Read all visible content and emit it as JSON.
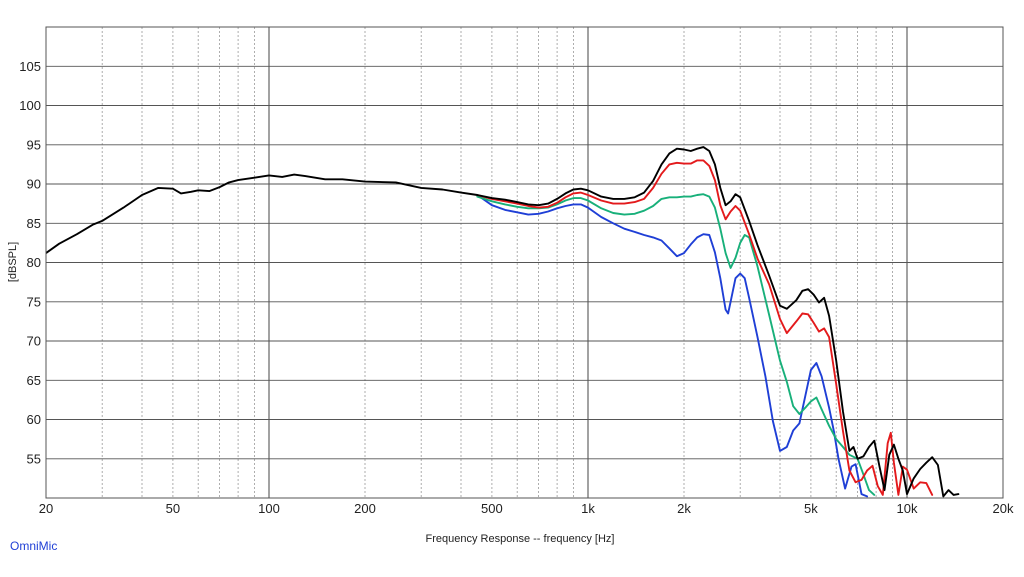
{
  "app": {
    "brand": "OmniMic"
  },
  "chart_data": {
    "type": "line",
    "title": "",
    "xlabel": "Frequency Response -- frequency [Hz]",
    "ylabel": "[dBSPL]",
    "x_scale": "log",
    "xlim": [
      20,
      20000
    ],
    "ylim": [
      50,
      110
    ],
    "grid": true,
    "x_ticks": [
      {
        "value": 20,
        "label": "20"
      },
      {
        "value": 50,
        "label": "50"
      },
      {
        "value": 100,
        "label": "100"
      },
      {
        "value": 200,
        "label": "200"
      },
      {
        "value": 500,
        "label": "500"
      },
      {
        "value": 1000,
        "label": "1k"
      },
      {
        "value": 2000,
        "label": "2k"
      },
      {
        "value": 5000,
        "label": "5k"
      },
      {
        "value": 10000,
        "label": "10k"
      },
      {
        "value": 20000,
        "label": "20k"
      }
    ],
    "y_ticks": [
      55,
      60,
      65,
      70,
      75,
      80,
      85,
      90,
      95,
      100,
      105
    ],
    "series": [
      {
        "color": "#000000",
        "points": [
          [
            20,
            81.2
          ],
          [
            22,
            82.4
          ],
          [
            25,
            83.6
          ],
          [
            28,
            84.8
          ],
          [
            30,
            85.3
          ],
          [
            35,
            87.0
          ],
          [
            40,
            88.6
          ],
          [
            45,
            89.5
          ],
          [
            50,
            89.4
          ],
          [
            53,
            88.8
          ],
          [
            57,
            89.0
          ],
          [
            60,
            89.2
          ],
          [
            65,
            89.1
          ],
          [
            70,
            89.6
          ],
          [
            75,
            90.2
          ],
          [
            80,
            90.5
          ],
          [
            90,
            90.8
          ],
          [
            100,
            91.1
          ],
          [
            110,
            90.9
          ],
          [
            120,
            91.2
          ],
          [
            130,
            91.0
          ],
          [
            150,
            90.6
          ],
          [
            170,
            90.6
          ],
          [
            200,
            90.3
          ],
          [
            250,
            90.2
          ],
          [
            300,
            89.5
          ],
          [
            350,
            89.3
          ],
          [
            400,
            88.9
          ],
          [
            450,
            88.6
          ],
          [
            500,
            88.2
          ],
          [
            550,
            88.0
          ],
          [
            600,
            87.7
          ],
          [
            650,
            87.4
          ],
          [
            700,
            87.3
          ],
          [
            750,
            87.5
          ],
          [
            800,
            88.1
          ],
          [
            850,
            88.8
          ],
          [
            900,
            89.3
          ],
          [
            950,
            89.4
          ],
          [
            1000,
            89.2
          ],
          [
            1100,
            88.4
          ],
          [
            1200,
            88.1
          ],
          [
            1300,
            88.1
          ],
          [
            1400,
            88.3
          ],
          [
            1500,
            88.9
          ],
          [
            1600,
            90.4
          ],
          [
            1700,
            92.5
          ],
          [
            1800,
            93.9
          ],
          [
            1900,
            94.5
          ],
          [
            2000,
            94.4
          ],
          [
            2100,
            94.2
          ],
          [
            2200,
            94.5
          ],
          [
            2300,
            94.7
          ],
          [
            2400,
            94.2
          ],
          [
            2500,
            92.5
          ],
          [
            2600,
            89.5
          ],
          [
            2700,
            87.3
          ],
          [
            2800,
            87.8
          ],
          [
            2900,
            88.7
          ],
          [
            3000,
            88.3
          ],
          [
            3200,
            85.3
          ],
          [
            3400,
            82.2
          ],
          [
            3700,
            78.3
          ],
          [
            4000,
            74.5
          ],
          [
            4200,
            74.1
          ],
          [
            4500,
            75.2
          ],
          [
            4700,
            76.4
          ],
          [
            4900,
            76.6
          ],
          [
            5100,
            75.9
          ],
          [
            5300,
            74.9
          ],
          [
            5500,
            75.5
          ],
          [
            5700,
            73.2
          ],
          [
            6000,
            67.5
          ],
          [
            6300,
            61.0
          ],
          [
            6600,
            56.0
          ],
          [
            6800,
            56.5
          ],
          [
            7000,
            55.0
          ],
          [
            7300,
            55.3
          ],
          [
            7600,
            56.5
          ],
          [
            7900,
            57.3
          ],
          [
            8200,
            54.0
          ],
          [
            8500,
            51.0
          ],
          [
            8800,
            55.5
          ],
          [
            9100,
            56.8
          ],
          [
            9400,
            55.0
          ],
          [
            9700,
            53.5
          ],
          [
            10000,
            50.5
          ],
          [
            10500,
            52.5
          ],
          [
            11000,
            53.7
          ],
          [
            11500,
            54.5
          ],
          [
            12000,
            55.2
          ],
          [
            12500,
            54.2
          ],
          [
            13000,
            50.2
          ],
          [
            13500,
            51.0
          ],
          [
            14000,
            50.4
          ],
          [
            14500,
            50.5
          ]
        ]
      },
      {
        "color": "#e31a1c",
        "points": [
          [
            450,
            88.6
          ],
          [
            500,
            88.1
          ],
          [
            550,
            87.8
          ],
          [
            600,
            87.5
          ],
          [
            650,
            87.2
          ],
          [
            700,
            87.0
          ],
          [
            750,
            87.1
          ],
          [
            800,
            87.6
          ],
          [
            850,
            88.3
          ],
          [
            900,
            88.8
          ],
          [
            950,
            88.9
          ],
          [
            1000,
            88.6
          ],
          [
            1100,
            87.9
          ],
          [
            1200,
            87.5
          ],
          [
            1300,
            87.5
          ],
          [
            1400,
            87.7
          ],
          [
            1500,
            88.1
          ],
          [
            1600,
            89.5
          ],
          [
            1700,
            91.3
          ],
          [
            1800,
            92.5
          ],
          [
            1900,
            92.7
          ],
          [
            2000,
            92.6
          ],
          [
            2100,
            92.6
          ],
          [
            2200,
            93.0
          ],
          [
            2300,
            93.0
          ],
          [
            2400,
            92.3
          ],
          [
            2500,
            90.5
          ],
          [
            2600,
            87.3
          ],
          [
            2700,
            85.5
          ],
          [
            2800,
            86.5
          ],
          [
            2900,
            87.2
          ],
          [
            3000,
            86.6
          ],
          [
            3200,
            83.6
          ],
          [
            3400,
            80.5
          ],
          [
            3700,
            77.2
          ],
          [
            4000,
            72.8
          ],
          [
            4200,
            71.0
          ],
          [
            4500,
            72.5
          ],
          [
            4700,
            73.5
          ],
          [
            4900,
            73.4
          ],
          [
            5100,
            72.3
          ],
          [
            5300,
            71.2
          ],
          [
            5500,
            71.6
          ],
          [
            5700,
            70.5
          ],
          [
            6000,
            64.5
          ],
          [
            6300,
            58.5
          ],
          [
            6600,
            53.5
          ],
          [
            6900,
            52.0
          ],
          [
            7200,
            52.3
          ],
          [
            7500,
            53.5
          ],
          [
            7800,
            54.1
          ],
          [
            8100,
            51.5
          ],
          [
            8400,
            50.4
          ],
          [
            8700,
            57.0
          ],
          [
            8900,
            58.3
          ],
          [
            9100,
            54.5
          ],
          [
            9400,
            50.4
          ],
          [
            9700,
            54.0
          ],
          [
            10000,
            53.6
          ],
          [
            10500,
            51.2
          ],
          [
            11000,
            52.0
          ],
          [
            11500,
            51.9
          ],
          [
            12000,
            50.4
          ]
        ]
      },
      {
        "color": "#18b07a",
        "points": [
          [
            450,
            88.4
          ],
          [
            500,
            87.8
          ],
          [
            550,
            87.4
          ],
          [
            600,
            87.1
          ],
          [
            650,
            86.9
          ],
          [
            700,
            86.9
          ],
          [
            750,
            87.0
          ],
          [
            800,
            87.4
          ],
          [
            850,
            87.9
          ],
          [
            900,
            88.2
          ],
          [
            950,
            88.2
          ],
          [
            1000,
            87.9
          ],
          [
            1100,
            86.9
          ],
          [
            1200,
            86.3
          ],
          [
            1300,
            86.1
          ],
          [
            1400,
            86.2
          ],
          [
            1500,
            86.6
          ],
          [
            1600,
            87.2
          ],
          [
            1700,
            88.1
          ],
          [
            1800,
            88.3
          ],
          [
            1900,
            88.3
          ],
          [
            2000,
            88.4
          ],
          [
            2100,
            88.4
          ],
          [
            2200,
            88.6
          ],
          [
            2300,
            88.7
          ],
          [
            2400,
            88.4
          ],
          [
            2500,
            87.0
          ],
          [
            2600,
            84.3
          ],
          [
            2700,
            81.2
          ],
          [
            2800,
            79.3
          ],
          [
            2900,
            80.6
          ],
          [
            3000,
            82.5
          ],
          [
            3100,
            83.5
          ],
          [
            3200,
            83.2
          ],
          [
            3400,
            79.5
          ],
          [
            3700,
            73.3
          ],
          [
            4000,
            67.5
          ],
          [
            4200,
            64.8
          ],
          [
            4400,
            61.7
          ],
          [
            4600,
            60.7
          ],
          [
            4800,
            61.5
          ],
          [
            5000,
            62.3
          ],
          [
            5200,
            62.8
          ],
          [
            5400,
            61.3
          ],
          [
            5700,
            59.2
          ],
          [
            6000,
            57.5
          ],
          [
            6300,
            56.5
          ],
          [
            6600,
            55.5
          ],
          [
            7000,
            55.0
          ],
          [
            7300,
            53.0
          ],
          [
            7600,
            51.0
          ],
          [
            7900,
            50.4
          ]
        ]
      },
      {
        "color": "#1f3fd6",
        "points": [
          [
            450,
            88.6
          ],
          [
            500,
            87.3
          ],
          [
            550,
            86.7
          ],
          [
            600,
            86.4
          ],
          [
            650,
            86.1
          ],
          [
            700,
            86.2
          ],
          [
            750,
            86.5
          ],
          [
            800,
            86.9
          ],
          [
            850,
            87.2
          ],
          [
            900,
            87.4
          ],
          [
            950,
            87.4
          ],
          [
            1000,
            87.0
          ],
          [
            1100,
            85.8
          ],
          [
            1200,
            85.0
          ],
          [
            1300,
            84.3
          ],
          [
            1400,
            83.9
          ],
          [
            1500,
            83.5
          ],
          [
            1600,
            83.2
          ],
          [
            1700,
            82.8
          ],
          [
            1800,
            81.8
          ],
          [
            1900,
            80.8
          ],
          [
            2000,
            81.2
          ],
          [
            2100,
            82.3
          ],
          [
            2200,
            83.2
          ],
          [
            2300,
            83.6
          ],
          [
            2400,
            83.5
          ],
          [
            2500,
            81.3
          ],
          [
            2600,
            78.0
          ],
          [
            2700,
            74.0
          ],
          [
            2750,
            73.5
          ],
          [
            2800,
            75.0
          ],
          [
            2900,
            78.0
          ],
          [
            3000,
            78.6
          ],
          [
            3100,
            78.0
          ],
          [
            3200,
            75.5
          ],
          [
            3400,
            70.5
          ],
          [
            3600,
            65.5
          ],
          [
            3800,
            59.8
          ],
          [
            4000,
            56.0
          ],
          [
            4200,
            56.5
          ],
          [
            4400,
            58.6
          ],
          [
            4600,
            59.5
          ],
          [
            4800,
            63.0
          ],
          [
            5000,
            66.3
          ],
          [
            5200,
            67.2
          ],
          [
            5400,
            65.5
          ],
          [
            5700,
            61.5
          ],
          [
            5900,
            58.5
          ],
          [
            6100,
            55.0
          ],
          [
            6400,
            51.2
          ],
          [
            6700,
            54.0
          ],
          [
            6900,
            54.3
          ],
          [
            7200,
            50.5
          ],
          [
            7500,
            50.2
          ]
        ]
      }
    ]
  }
}
